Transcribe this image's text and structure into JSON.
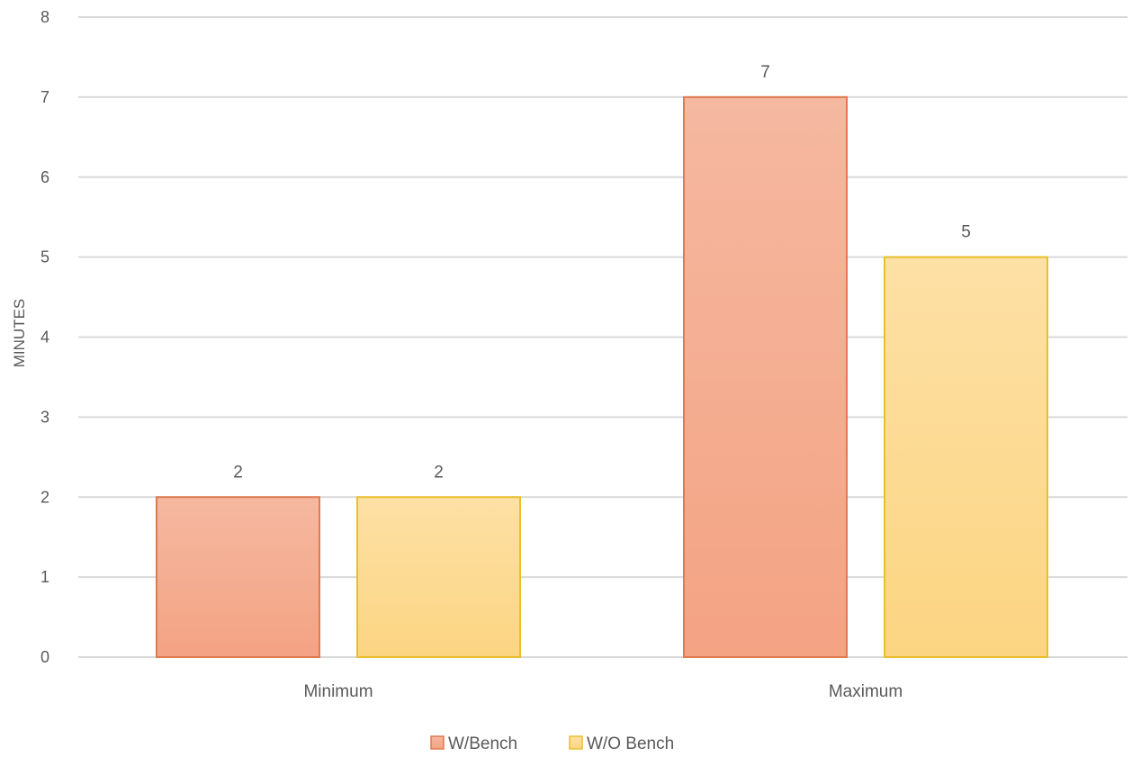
{
  "chart_data": {
    "type": "bar",
    "title": "",
    "xlabel": "",
    "ylabel": "MINUTES",
    "ylim": [
      0,
      8
    ],
    "yticks": [
      0,
      1,
      2,
      3,
      4,
      5,
      6,
      7,
      8
    ],
    "grid": true,
    "legend_position": "bottom",
    "categories": [
      "Minimum",
      "Maximum"
    ],
    "series": [
      {
        "name": "W/Bench",
        "values": [
          2,
          7
        ],
        "fill_top": "#f5b8a0",
        "fill_bottom": "#f4a383",
        "stroke": "#e07a4f"
      },
      {
        "name": "W/O Bench",
        "values": [
          2,
          5
        ],
        "fill_top": "#fde0a5",
        "fill_bottom": "#fcd582",
        "stroke": "#eabf2e"
      }
    ],
    "data_labels": true
  }
}
